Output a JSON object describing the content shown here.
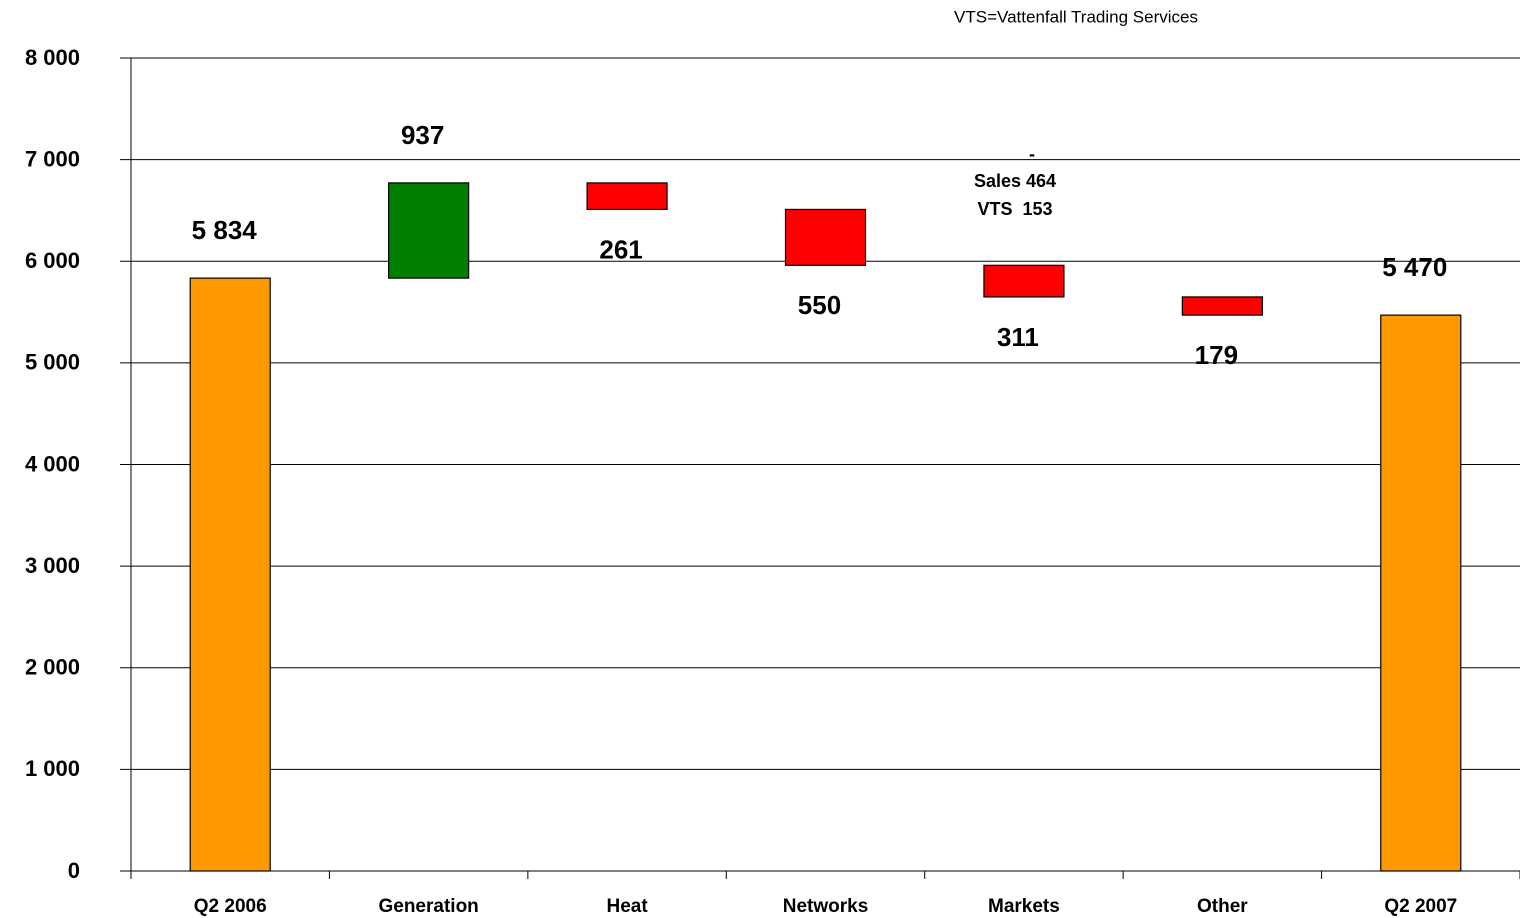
{
  "chart_data": {
    "type": "waterfall",
    "categories": [
      "Q2 2006",
      "Generation",
      "Heat",
      "Networks",
      "Markets",
      "Other",
      "Q2 2007"
    ],
    "values": [
      5834,
      937,
      -261,
      -550,
      -311,
      -179,
      5470
    ],
    "value_labels": [
      "5 834",
      "937",
      "261",
      "550",
      "311",
      "179",
      "5 470"
    ],
    "measure": [
      "absolute",
      "relative",
      "relative",
      "relative",
      "relative",
      "relative",
      "absolute"
    ],
    "colors": [
      "#ff9900",
      "#007f00",
      "#ff0000",
      "#ff0000",
      "#ff0000",
      "#ff0000",
      "#ff9900"
    ],
    "ylim": [
      0,
      8000
    ],
    "yticks": [
      0,
      {
        "value": 1000,
        "label": "1 000"
      },
      {
        "value": 2000,
        "label": "2 000"
      },
      {
        "value": 3000,
        "label": "3 000"
      },
      {
        "value": 4000,
        "label": "4 000"
      },
      {
        "value": 5000,
        "label": "5 000"
      },
      {
        "value": 6000,
        "label": "6 000"
      },
      {
        "value": 7000,
        "label": "7 000"
      },
      {
        "value": 8000,
        "label": "8 000"
      }
    ],
    "grid": true,
    "annotations": [
      "VTS=Vattenfall Trading Services",
      "-",
      "Sales 464",
      "VTS  153"
    ]
  }
}
